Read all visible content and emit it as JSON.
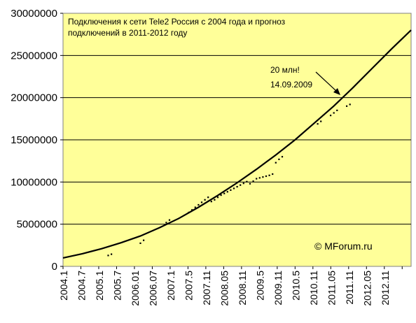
{
  "chart_data": {
    "type": "line",
    "title_lines": [
      "Подключения к сети Tele2 Россия с 2004 года и прогноз",
      "подключений в 2011-2012 году"
    ],
    "xlabel": "",
    "ylabel": "",
    "ylim": [
      0,
      30000000
    ],
    "yticks": [
      "0",
      "5000000",
      "10000000",
      "15000000",
      "20000000",
      "25000000",
      "30000000"
    ],
    "x_start": "2004.1",
    "x_end": "2013.1",
    "x_tick_labels": [
      "2004.1",
      "2004.7",
      "2005.1",
      "2005.7",
      "2006.01",
      "2006.07",
      "2007.1",
      "2007.5",
      "2007.11",
      "2008.05",
      "2008.11",
      "2009.5",
      "2009.11",
      "2010.5",
      "2010.11",
      "2011.05",
      "2011.11",
      "2012.05",
      "2012.11"
    ],
    "grid": true,
    "colors": {
      "plot_bg": "#ffff99",
      "line": "#000000",
      "grid": "#000000"
    },
    "series": [
      {
        "kind": "actual",
        "values": [
          {
            "x": "2005.3",
            "y": 1300000
          },
          {
            "x": "2005.4",
            "y": 1450000
          },
          {
            "x": "2006.1",
            "y": 2750000
          },
          {
            "x": "2006.2",
            "y": 3100000
          },
          {
            "x": "2006.9",
            "y": 5200000
          },
          {
            "x": "2006.10",
            "y": 5500000
          },
          {
            "x": "2007.4",
            "y": 6400000
          },
          {
            "x": "2007.5",
            "y": 6700000
          },
          {
            "x": "2007.6",
            "y": 7000000
          },
          {
            "x": "2007.7",
            "y": 7300000
          },
          {
            "x": "2007.8",
            "y": 7600000
          },
          {
            "x": "2007.9",
            "y": 7900000
          },
          {
            "x": "2007.10",
            "y": 8200000
          },
          {
            "x": "2007.11",
            "y": 7700000
          },
          {
            "x": "2007.12",
            "y": 7900000
          },
          {
            "x": "2008.1",
            "y": 8200000
          },
          {
            "x": "2008.2",
            "y": 8450000
          },
          {
            "x": "2008.3",
            "y": 8650000
          },
          {
            "x": "2008.4",
            "y": 8850000
          },
          {
            "x": "2008.5",
            "y": 9050000
          },
          {
            "x": "2008.6",
            "y": 9250000
          },
          {
            "x": "2008.7",
            "y": 9450000
          },
          {
            "x": "2008.8",
            "y": 9650000
          },
          {
            "x": "2008.9",
            "y": 9850000
          },
          {
            "x": "2008.10",
            "y": 10050000
          },
          {
            "x": "2008.11",
            "y": 9800000
          },
          {
            "x": "2008.12",
            "y": 10100000
          },
          {
            "x": "2009.1",
            "y": 10400000
          },
          {
            "x": "2009.2",
            "y": 10500000
          },
          {
            "x": "2009.3",
            "y": 10600000
          },
          {
            "x": "2009.4",
            "y": 10700000
          },
          {
            "x": "2009.5",
            "y": 10800000
          },
          {
            "x": "2009.6",
            "y": 10950000
          },
          {
            "x": "2009.7",
            "y": 12300000
          },
          {
            "x": "2009.8",
            "y": 12700000
          },
          {
            "x": "2009.9",
            "y": 13000000
          },
          {
            "x": "2010.8",
            "y": 16900000
          },
          {
            "x": "2010.9",
            "y": 17200000
          },
          {
            "x": "2010.12",
            "y": 17900000
          },
          {
            "x": "2011.1",
            "y": 18200000
          },
          {
            "x": "2011.2",
            "y": 18500000
          },
          {
            "x": "2011.5",
            "y": 19000000
          },
          {
            "x": "2011.6",
            "y": 19200000
          }
        ]
      },
      {
        "kind": "trend",
        "values": [
          {
            "x": "2004.1",
            "y": 1000000
          },
          {
            "x": "2004.7",
            "y": 1500000
          },
          {
            "x": "2005.1",
            "y": 2100000
          },
          {
            "x": "2005.7",
            "y": 2800000
          },
          {
            "x": "2006.1",
            "y": 3600000
          },
          {
            "x": "2006.7",
            "y": 4600000
          },
          {
            "x": "2007.1",
            "y": 5700000
          },
          {
            "x": "2007.7",
            "y": 7000000
          },
          {
            "x": "2008.1",
            "y": 8400000
          },
          {
            "x": "2008.7",
            "y": 9900000
          },
          {
            "x": "2009.1",
            "y": 11500000
          },
          {
            "x": "2009.7",
            "y": 13200000
          },
          {
            "x": "2010.1",
            "y": 15000000
          },
          {
            "x": "2010.7",
            "y": 17000000
          },
          {
            "x": "2011.1",
            "y": 19000000
          },
          {
            "x": "2011.7",
            "y": 21200000
          },
          {
            "x": "2012.1",
            "y": 23500000
          },
          {
            "x": "2012.7",
            "y": 25800000
          },
          {
            "x": "2013.1",
            "y": 28000000
          }
        ]
      }
    ],
    "annotations": [
      {
        "text_lines": [
          "20 млн!",
          "14.09.2009"
        ],
        "points_to": {
          "x": "2011.6",
          "y": 20000000
        }
      },
      {
        "text": "© MForum.ru"
      }
    ]
  }
}
